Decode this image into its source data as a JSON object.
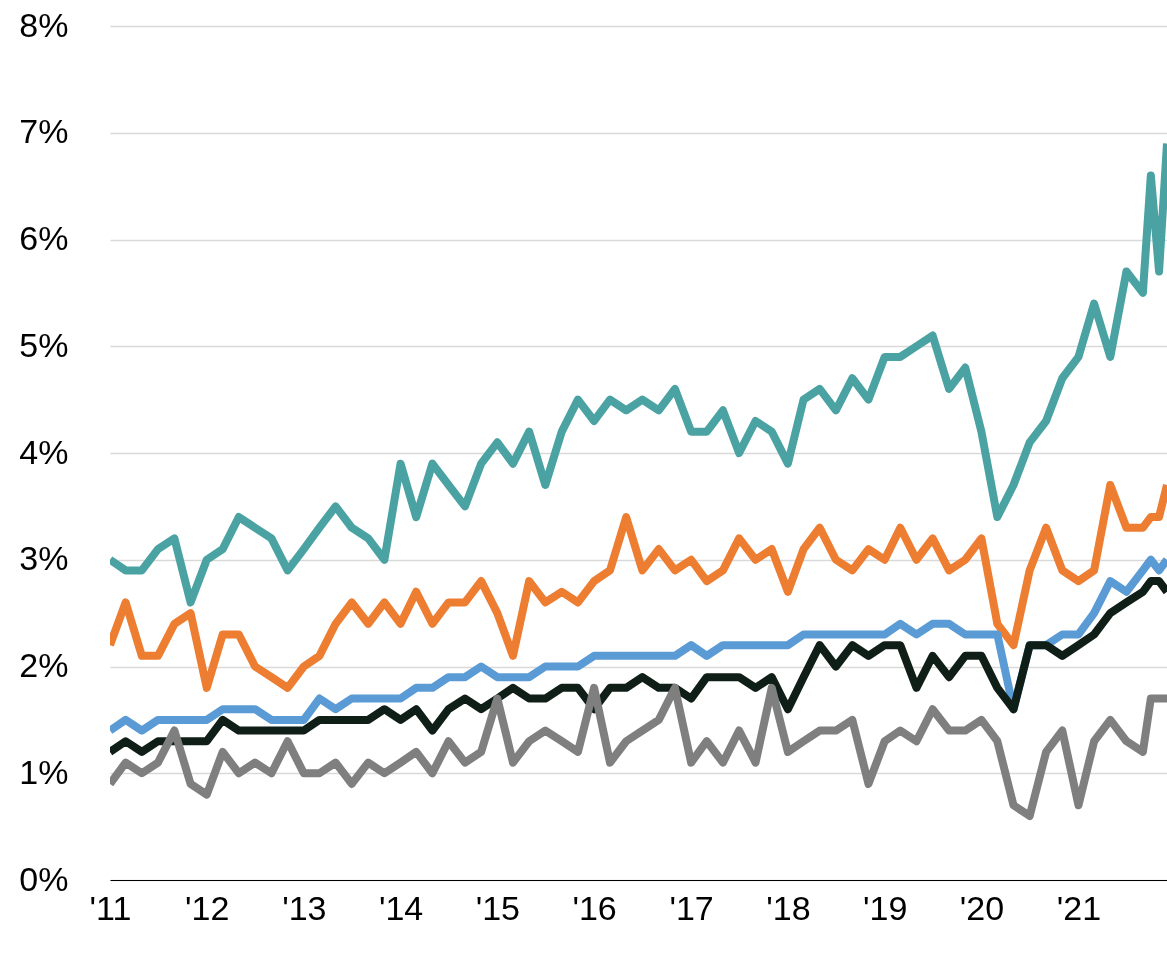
{
  "chart_data": {
    "type": "line",
    "grid": "y",
    "line_style": "solid",
    "x": [
      "2011-01",
      "2011-03",
      "2011-05",
      "2011-07",
      "2011-09",
      "2011-11",
      "2012-01",
      "2012-03",
      "2012-05",
      "2012-07",
      "2012-09",
      "2012-11",
      "2013-01",
      "2013-03",
      "2013-05",
      "2013-07",
      "2013-09",
      "2013-11",
      "2014-01",
      "2014-03",
      "2014-05",
      "2014-07",
      "2014-09",
      "2014-11",
      "2015-01",
      "2015-03",
      "2015-05",
      "2015-07",
      "2015-09",
      "2015-11",
      "2016-01",
      "2016-03",
      "2016-05",
      "2016-07",
      "2016-09",
      "2016-11",
      "2017-01",
      "2017-03",
      "2017-05",
      "2017-07",
      "2017-09",
      "2017-11",
      "2018-01",
      "2018-03",
      "2018-05",
      "2018-07",
      "2018-09",
      "2018-11",
      "2019-01",
      "2019-03",
      "2019-05",
      "2019-07",
      "2019-09",
      "2019-11",
      "2020-01",
      "2020-03",
      "2020-05",
      "2020-07",
      "2020-09",
      "2020-11",
      "2021-01",
      "2021-03",
      "2021-05",
      "2021-07",
      "2021-09",
      "2021-10",
      "2021-11",
      "2021-12"
    ],
    "series": [
      {
        "color": "#4aa3a2",
        "values": [
          3.0,
          2.9,
          2.9,
          3.1,
          3.2,
          2.6,
          3.0,
          3.1,
          3.4,
          3.3,
          3.2,
          2.9,
          3.1,
          3.3,
          3.5,
          3.3,
          3.2,
          3.0,
          3.9,
          3.4,
          3.9,
          3.7,
          3.5,
          3.9,
          4.1,
          3.9,
          4.2,
          3.7,
          4.2,
          4.5,
          4.3,
          4.5,
          4.4,
          4.5,
          4.4,
          4.6,
          4.2,
          4.2,
          4.4,
          4.0,
          4.3,
          4.2,
          3.9,
          4.5,
          4.6,
          4.4,
          4.7,
          4.5,
          4.9,
          4.9,
          5.0,
          5.1,
          4.6,
          4.8,
          4.2,
          3.4,
          3.7,
          4.1,
          4.3,
          4.7,
          4.9,
          5.4,
          4.9,
          5.7,
          5.5,
          6.6,
          5.7,
          6.9
        ]
      },
      {
        "color": "#ed7d31",
        "values": [
          2.2,
          2.6,
          2.1,
          2.1,
          2.4,
          2.5,
          1.8,
          2.3,
          2.3,
          2.0,
          1.9,
          1.8,
          2.0,
          2.1,
          2.4,
          2.6,
          2.4,
          2.6,
          2.4,
          2.7,
          2.4,
          2.6,
          2.6,
          2.8,
          2.5,
          2.1,
          2.8,
          2.6,
          2.7,
          2.6,
          2.8,
          2.9,
          3.4,
          2.9,
          3.1,
          2.9,
          3.0,
          2.8,
          2.9,
          3.2,
          3.0,
          3.1,
          2.7,
          3.1,
          3.3,
          3.0,
          2.9,
          3.1,
          3.0,
          3.3,
          3.0,
          3.2,
          2.9,
          3.0,
          3.2,
          2.4,
          2.2,
          2.9,
          3.3,
          2.9,
          2.8,
          2.9,
          3.7,
          3.3,
          3.3,
          3.4,
          3.4,
          3.7
        ]
      },
      {
        "color": "#5b9bd5",
        "values": [
          1.4,
          1.5,
          1.4,
          1.5,
          1.5,
          1.5,
          1.5,
          1.6,
          1.6,
          1.6,
          1.5,
          1.5,
          1.5,
          1.7,
          1.6,
          1.7,
          1.7,
          1.7,
          1.7,
          1.8,
          1.8,
          1.9,
          1.9,
          2.0,
          1.9,
          1.9,
          1.9,
          2.0,
          2.0,
          2.0,
          2.1,
          2.1,
          2.1,
          2.1,
          2.1,
          2.1,
          2.2,
          2.1,
          2.2,
          2.2,
          2.2,
          2.2,
          2.2,
          2.3,
          2.3,
          2.3,
          2.3,
          2.3,
          2.3,
          2.4,
          2.3,
          2.4,
          2.4,
          2.3,
          2.3,
          2.3,
          1.6,
          2.2,
          2.2,
          2.3,
          2.3,
          2.5,
          2.8,
          2.7,
          2.9,
          3.0,
          2.9,
          3.0
        ]
      },
      {
        "color": "#0f1f18",
        "values": [
          1.2,
          1.3,
          1.2,
          1.3,
          1.3,
          1.3,
          1.3,
          1.5,
          1.4,
          1.4,
          1.4,
          1.4,
          1.4,
          1.5,
          1.5,
          1.5,
          1.5,
          1.6,
          1.5,
          1.6,
          1.4,
          1.6,
          1.7,
          1.6,
          1.7,
          1.8,
          1.7,
          1.7,
          1.8,
          1.8,
          1.6,
          1.8,
          1.8,
          1.9,
          1.8,
          1.8,
          1.7,
          1.9,
          1.9,
          1.9,
          1.8,
          1.9,
          1.6,
          1.9,
          2.2,
          2.0,
          2.2,
          2.1,
          2.2,
          2.2,
          1.8,
          2.1,
          1.9,
          2.1,
          2.1,
          1.8,
          1.6,
          2.2,
          2.2,
          2.1,
          2.2,
          2.3,
          2.5,
          2.6,
          2.7,
          2.8,
          2.8,
          2.7
        ]
      },
      {
        "color": "#7f7f7f",
        "values": [
          0.9,
          1.1,
          1.0,
          1.1,
          1.4,
          0.9,
          0.8,
          1.2,
          1.0,
          1.1,
          1.0,
          1.3,
          1.0,
          1.0,
          1.1,
          0.9,
          1.1,
          1.0,
          1.1,
          1.2,
          1.0,
          1.3,
          1.1,
          1.2,
          1.7,
          1.1,
          1.3,
          1.4,
          1.3,
          1.2,
          1.8,
          1.1,
          1.3,
          1.4,
          1.5,
          1.8,
          1.1,
          1.3,
          1.1,
          1.4,
          1.1,
          1.8,
          1.2,
          1.3,
          1.4,
          1.4,
          1.5,
          0.9,
          1.3,
          1.4,
          1.3,
          1.6,
          1.4,
          1.4,
          1.5,
          1.3,
          0.7,
          0.6,
          1.2,
          1.4,
          0.7,
          1.3,
          1.5,
          1.3,
          1.2,
          1.7,
          1.7,
          1.7
        ]
      }
    ],
    "xlim": [
      "2011-01",
      "2021-12"
    ],
    "xticks": [
      {
        "value": "2011",
        "label": "'11"
      },
      {
        "value": "2012",
        "label": "'12"
      },
      {
        "value": "2013",
        "label": "'13"
      },
      {
        "value": "2014",
        "label": "'14"
      },
      {
        "value": "2015",
        "label": "'15"
      },
      {
        "value": "2016",
        "label": "'16"
      },
      {
        "value": "2017",
        "label": "'17"
      },
      {
        "value": "2018",
        "label": "'18"
      },
      {
        "value": "2019",
        "label": "'19"
      },
      {
        "value": "2020",
        "label": "'20"
      },
      {
        "value": "2021",
        "label": "'21"
      }
    ],
    "ylim": [
      0,
      8
    ],
    "yticks": [
      {
        "value": 0,
        "label": "0%"
      },
      {
        "value": 1,
        "label": "1%"
      },
      {
        "value": 2,
        "label": "2%"
      },
      {
        "value": 3,
        "label": "3%"
      },
      {
        "value": 4,
        "label": "4%"
      },
      {
        "value": 5,
        "label": "5%"
      },
      {
        "value": 6,
        "label": "6%"
      },
      {
        "value": 7,
        "label": "7%"
      },
      {
        "value": 8,
        "label": "8%"
      }
    ]
  }
}
